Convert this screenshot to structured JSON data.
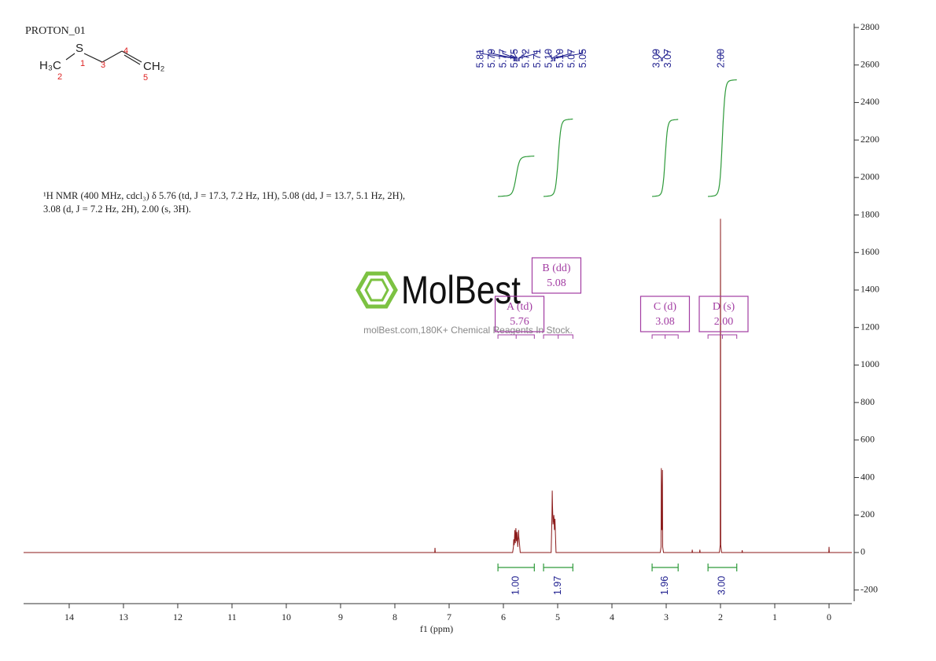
{
  "chart_data": {
    "type": "line",
    "title": "PROTON_01",
    "x_label": "f1 (ppm)",
    "color": "#8b1a1a",
    "x": [
      14.84,
      7.265,
      7.26,
      7.255,
      5.83,
      5.815,
      5.81,
      5.8,
      5.79,
      5.78,
      5.77,
      5.76,
      5.75,
      5.735,
      5.72,
      5.715,
      5.71,
      5.69,
      5.12,
      5.105,
      5.1,
      5.095,
      5.085,
      5.07,
      5.06,
      5.05,
      5.03,
      3.11,
      3.095,
      3.09,
      3.08,
      3.07,
      3.065,
      3.05,
      2.525,
      2.52,
      2.515,
      2.385,
      2.38,
      2.375,
      2.02,
      2.005,
      2.0,
      1.995,
      1.98,
      1.605,
      1.6,
      1.595,
      0.005,
      0,
      -0.005,
      -0.42
    ],
    "values": [
      0,
      0,
      25,
      0,
      0,
      30,
      70,
      40,
      120,
      50,
      130,
      60,
      110,
      30,
      120,
      80,
      70,
      0,
      0,
      200,
      330,
      250,
      150,
      200,
      120,
      180,
      0,
      0,
      30,
      450,
      120,
      440,
      30,
      0,
      0,
      15,
      0,
      0,
      15,
      0,
      0,
      40,
      1780,
      40,
      0,
      0,
      12,
      0,
      0,
      30,
      0,
      0
    ],
    "xlim": [
      14.84,
      -0.42
    ],
    "xticks": [
      14,
      13,
      12,
      11,
      10,
      9,
      8,
      7,
      6,
      5,
      4,
      3,
      2,
      1,
      0
    ],
    "ylim": [
      -260,
      2800
    ],
    "yticks": [
      -200,
      0,
      200,
      400,
      600,
      800,
      1000,
      1200,
      1400,
      1600,
      1800,
      2000,
      2200,
      2400,
      2600,
      2800
    ],
    "peaks": {
      "color": "#1f1f8f",
      "values": [
        5.81,
        5.79,
        5.77,
        5.75,
        5.72,
        5.71,
        5.1,
        5.1,
        5.07,
        5.05,
        3.09,
        3.07,
        2
      ],
      "value_labels": [
        "5.81",
        "5.79",
        "5.77",
        "5.75",
        "5.72",
        "5.71",
        "5.10",
        "5.10",
        "5.07",
        "5.05",
        "3.09",
        "3.07",
        "2.00"
      ]
    },
    "integrals": {
      "color": "#2e9a3a",
      "ranges": [
        [
          6.1,
          5.43
        ],
        [
          5.26,
          4.72
        ],
        [
          3.26,
          2.78
        ],
        [
          2.23,
          1.7
        ]
      ],
      "values": [
        1,
        1.97,
        1.96,
        3
      ],
      "value_labels": [
        "1.00",
        "1.97",
        "1.96",
        "3.00"
      ]
    },
    "multiplets": {
      "color": "#a23ca2",
      "names": [
        "A (td)",
        "B (dd)",
        "C (d)",
        "D (s)"
      ],
      "shifts": [
        5.76,
        5.08,
        3.08,
        2
      ],
      "shift_labels": [
        "5.76",
        "5.08",
        "3.08",
        "2.00"
      ]
    },
    "description": [
      "¹H NMR (400 MHz, cdcl₃) δ 5.76 (td, J = 17.3, 7.2 Hz, 1H), 5.08 (dd, J = 13.7, 5.1 Hz, 2H),",
      "3.08 (d, J = 7.2 Hz, 2H), 2.00 (s, 3H)."
    ],
    "structure": {
      "atoms": [
        "H₃C",
        "S",
        "CH₂"
      ],
      "numbers": [
        2,
        1,
        3,
        4,
        5
      ]
    },
    "watermark": {
      "name": "MolBest",
      "tagline": "molBest.com,180K+ Chemical Reagents In Stock."
    }
  }
}
